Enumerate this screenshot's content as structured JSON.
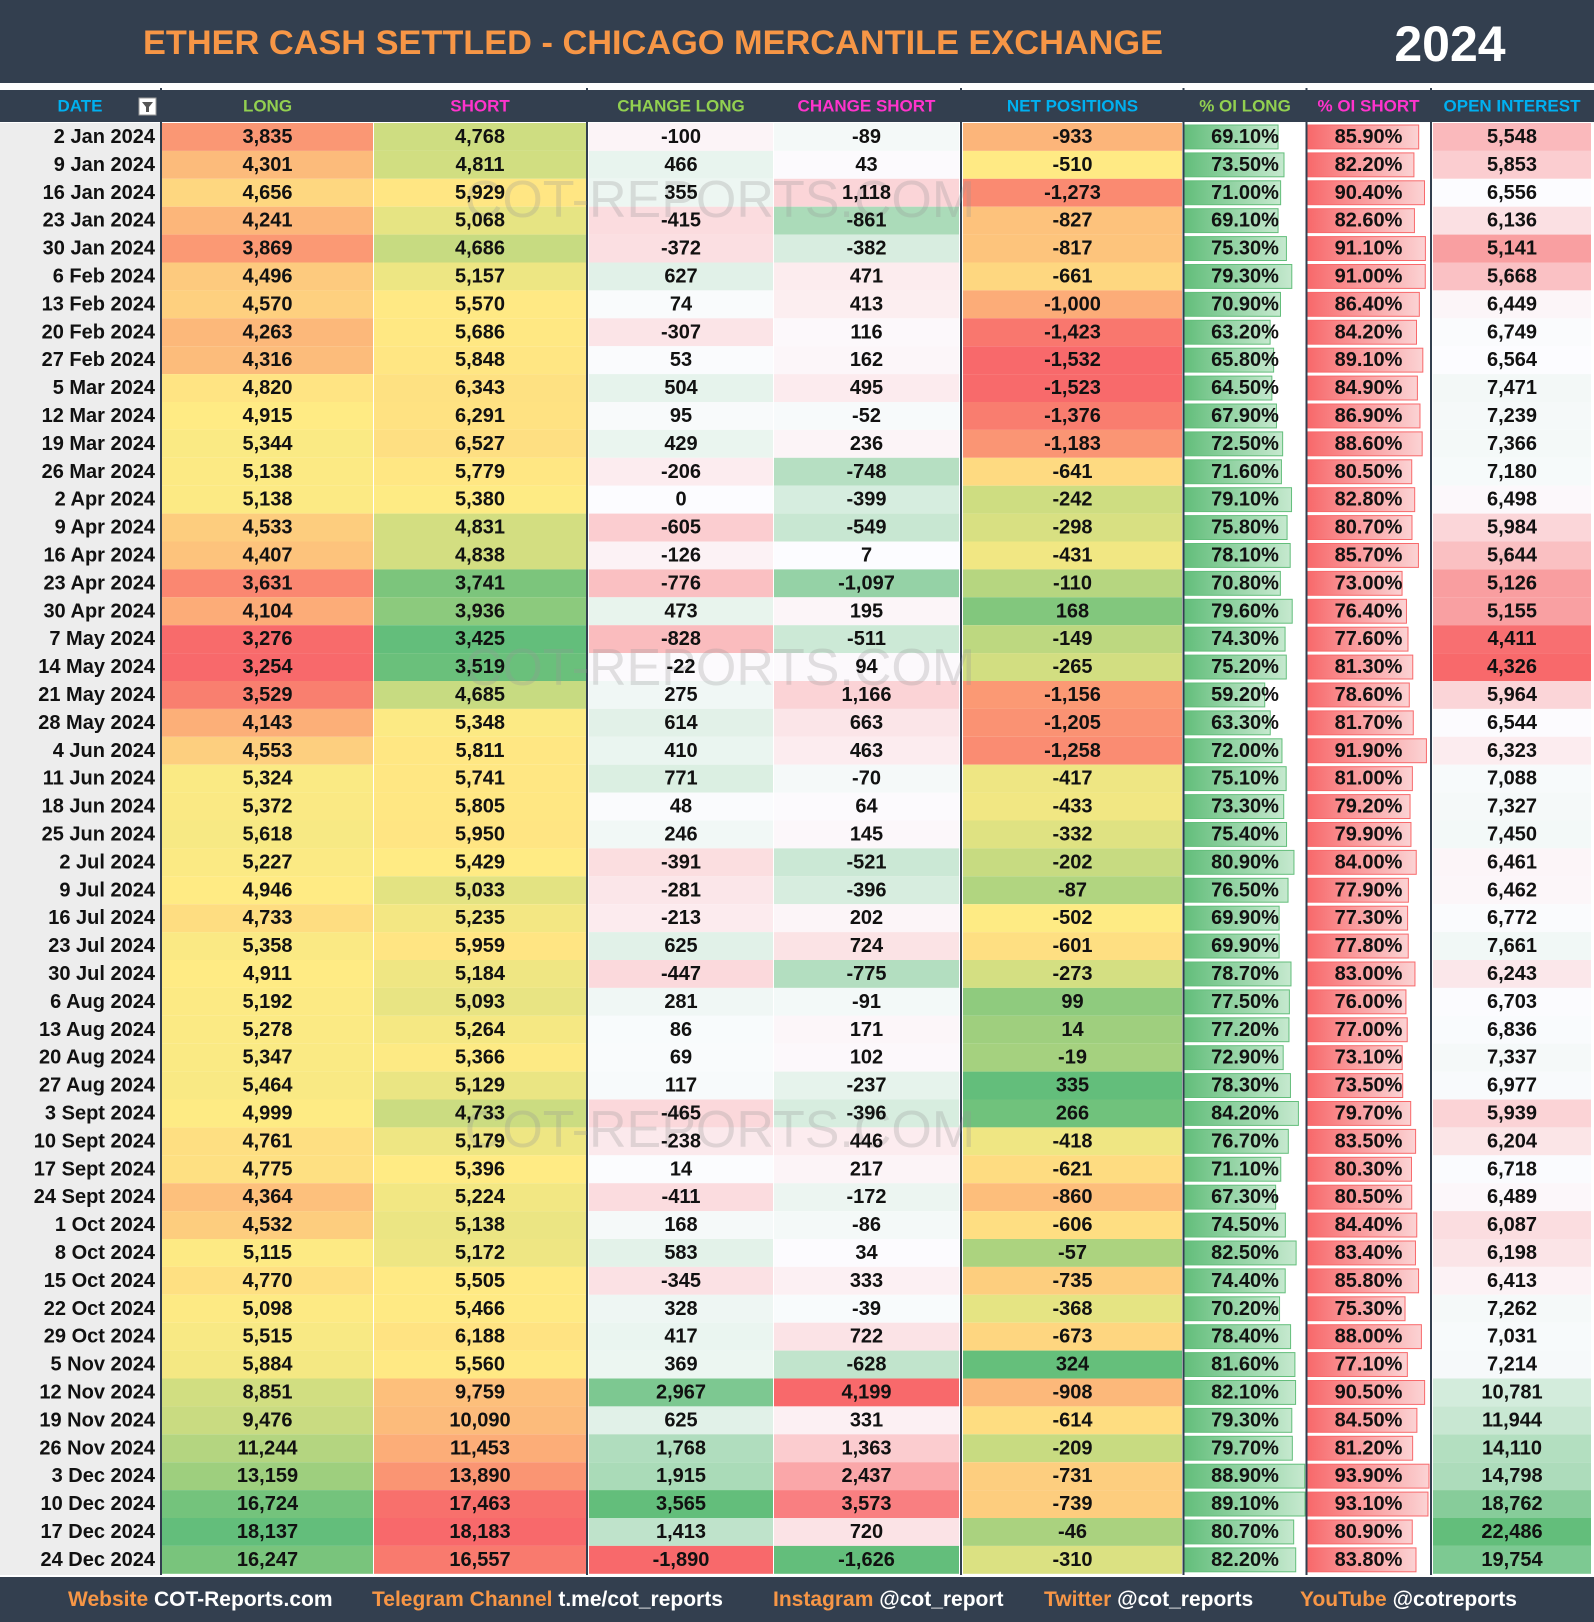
{
  "header": {
    "title": "ETHER CASH SETTLED - CHICAGO MERCANTILE EXCHANGE",
    "year": "2024"
  },
  "table": {
    "columns": [
      "DATE",
      "LONG",
      "SHORT",
      "CHANGE LONG",
      "CHANGE SHORT",
      "NET POSITIONS",
      "% OI LONG",
      "% OI SHORT",
      "OPEN INTEREST"
    ],
    "rows": [
      [
        "2 Jan 2024",
        "3,835",
        "4,768",
        "-100",
        "-89",
        "-933",
        "69.10%",
        "85.90%",
        "5,548"
      ],
      [
        "9 Jan 2024",
        "4,301",
        "4,811",
        "466",
        "43",
        "-510",
        "73.50%",
        "82.20%",
        "5,853"
      ],
      [
        "16 Jan 2024",
        "4,656",
        "5,929",
        "355",
        "1,118",
        "-1,273",
        "71.00%",
        "90.40%",
        "6,556"
      ],
      [
        "23 Jan 2024",
        "4,241",
        "5,068",
        "-415",
        "-861",
        "-827",
        "69.10%",
        "82.60%",
        "6,136"
      ],
      [
        "30 Jan 2024",
        "3,869",
        "4,686",
        "-372",
        "-382",
        "-817",
        "75.30%",
        "91.10%",
        "5,141"
      ],
      [
        "6 Feb 2024",
        "4,496",
        "5,157",
        "627",
        "471",
        "-661",
        "79.30%",
        "91.00%",
        "5,668"
      ],
      [
        "13 Feb 2024",
        "4,570",
        "5,570",
        "74",
        "413",
        "-1,000",
        "70.90%",
        "86.40%",
        "6,449"
      ],
      [
        "20 Feb 2024",
        "4,263",
        "5,686",
        "-307",
        "116",
        "-1,423",
        "63.20%",
        "84.20%",
        "6,749"
      ],
      [
        "27 Feb 2024",
        "4,316",
        "5,848",
        "53",
        "162",
        "-1,532",
        "65.80%",
        "89.10%",
        "6,564"
      ],
      [
        "5 Mar 2024",
        "4,820",
        "6,343",
        "504",
        "495",
        "-1,523",
        "64.50%",
        "84.90%",
        "7,471"
      ],
      [
        "12 Mar 2024",
        "4,915",
        "6,291",
        "95",
        "-52",
        "-1,376",
        "67.90%",
        "86.90%",
        "7,239"
      ],
      [
        "19 Mar 2024",
        "5,344",
        "6,527",
        "429",
        "236",
        "-1,183",
        "72.50%",
        "88.60%",
        "7,366"
      ],
      [
        "26 Mar 2024",
        "5,138",
        "5,779",
        "-206",
        "-748",
        "-641",
        "71.60%",
        "80.50%",
        "7,180"
      ],
      [
        "2 Apr 2024",
        "5,138",
        "5,380",
        "0",
        "-399",
        "-242",
        "79.10%",
        "82.80%",
        "6,498"
      ],
      [
        "9 Apr 2024",
        "4,533",
        "4,831",
        "-605",
        "-549",
        "-298",
        "75.80%",
        "80.70%",
        "5,984"
      ],
      [
        "16 Apr 2024",
        "4,407",
        "4,838",
        "-126",
        "7",
        "-431",
        "78.10%",
        "85.70%",
        "5,644"
      ],
      [
        "23 Apr 2024",
        "3,631",
        "3,741",
        "-776",
        "-1,097",
        "-110",
        "70.80%",
        "73.00%",
        "5,126"
      ],
      [
        "30 Apr 2024",
        "4,104",
        "3,936",
        "473",
        "195",
        "168",
        "79.60%",
        "76.40%",
        "5,155"
      ],
      [
        "7 May 2024",
        "3,276",
        "3,425",
        "-828",
        "-511",
        "-149",
        "74.30%",
        "77.60%",
        "4,411"
      ],
      [
        "14 May 2024",
        "3,254",
        "3,519",
        "-22",
        "94",
        "-265",
        "75.20%",
        "81.30%",
        "4,326"
      ],
      [
        "21 May 2024",
        "3,529",
        "4,685",
        "275",
        "1,166",
        "-1,156",
        "59.20%",
        "78.60%",
        "5,964"
      ],
      [
        "28 May 2024",
        "4,143",
        "5,348",
        "614",
        "663",
        "-1,205",
        "63.30%",
        "81.70%",
        "6,544"
      ],
      [
        "4 Jun 2024",
        "4,553",
        "5,811",
        "410",
        "463",
        "-1,258",
        "72.00%",
        "91.90%",
        "6,323"
      ],
      [
        "11 Jun 2024",
        "5,324",
        "5,741",
        "771",
        "-70",
        "-417",
        "75.10%",
        "81.00%",
        "7,088"
      ],
      [
        "18 Jun 2024",
        "5,372",
        "5,805",
        "48",
        "64",
        "-433",
        "73.30%",
        "79.20%",
        "7,327"
      ],
      [
        "25 Jun 2024",
        "5,618",
        "5,950",
        "246",
        "145",
        "-332",
        "75.40%",
        "79.90%",
        "7,450"
      ],
      [
        "2 Jul 2024",
        "5,227",
        "5,429",
        "-391",
        "-521",
        "-202",
        "80.90%",
        "84.00%",
        "6,461"
      ],
      [
        "9 Jul 2024",
        "4,946",
        "5,033",
        "-281",
        "-396",
        "-87",
        "76.50%",
        "77.90%",
        "6,462"
      ],
      [
        "16 Jul 2024",
        "4,733",
        "5,235",
        "-213",
        "202",
        "-502",
        "69.90%",
        "77.30%",
        "6,772"
      ],
      [
        "23 Jul 2024",
        "5,358",
        "5,959",
        "625",
        "724",
        "-601",
        "69.90%",
        "77.80%",
        "7,661"
      ],
      [
        "30 Jul 2024",
        "4,911",
        "5,184",
        "-447",
        "-775",
        "-273",
        "78.70%",
        "83.00%",
        "6,243"
      ],
      [
        "6 Aug 2024",
        "5,192",
        "5,093",
        "281",
        "-91",
        "99",
        "77.50%",
        "76.00%",
        "6,703"
      ],
      [
        "13 Aug 2024",
        "5,278",
        "5,264",
        "86",
        "171",
        "14",
        "77.20%",
        "77.00%",
        "6,836"
      ],
      [
        "20 Aug 2024",
        "5,347",
        "5,366",
        "69",
        "102",
        "-19",
        "72.90%",
        "73.10%",
        "7,337"
      ],
      [
        "27 Aug 2024",
        "5,464",
        "5,129",
        "117",
        "-237",
        "335",
        "78.30%",
        "73.50%",
        "6,977"
      ],
      [
        "3 Sept 2024",
        "4,999",
        "4,733",
        "-465",
        "-396",
        "266",
        "84.20%",
        "79.70%",
        "5,939"
      ],
      [
        "10 Sept 2024",
        "4,761",
        "5,179",
        "-238",
        "446",
        "-418",
        "76.70%",
        "83.50%",
        "6,204"
      ],
      [
        "17 Sept 2024",
        "4,775",
        "5,396",
        "14",
        "217",
        "-621",
        "71.10%",
        "80.30%",
        "6,718"
      ],
      [
        "24 Sept 2024",
        "4,364",
        "5,224",
        "-411",
        "-172",
        "-860",
        "67.30%",
        "80.50%",
        "6,489"
      ],
      [
        "1 Oct 2024",
        "4,532",
        "5,138",
        "168",
        "-86",
        "-606",
        "74.50%",
        "84.40%",
        "6,087"
      ],
      [
        "8 Oct 2024",
        "5,115",
        "5,172",
        "583",
        "34",
        "-57",
        "82.50%",
        "83.40%",
        "6,198"
      ],
      [
        "15 Oct 2024",
        "4,770",
        "5,505",
        "-345",
        "333",
        "-735",
        "74.40%",
        "85.80%",
        "6,413"
      ],
      [
        "22 Oct 2024",
        "5,098",
        "5,466",
        "328",
        "-39",
        "-368",
        "70.20%",
        "75.30%",
        "7,262"
      ],
      [
        "29 Oct 2024",
        "5,515",
        "6,188",
        "417",
        "722",
        "-673",
        "78.40%",
        "88.00%",
        "7,031"
      ],
      [
        "5 Nov 2024",
        "5,884",
        "5,560",
        "369",
        "-628",
        "324",
        "81.60%",
        "77.10%",
        "7,214"
      ],
      [
        "12 Nov 2024",
        "8,851",
        "9,759",
        "2,967",
        "4,199",
        "-908",
        "82.10%",
        "90.50%",
        "10,781"
      ],
      [
        "19 Nov 2024",
        "9,476",
        "10,090",
        "625",
        "331",
        "-614",
        "79.30%",
        "84.50%",
        "11,944"
      ],
      [
        "26 Nov 2024",
        "11,244",
        "11,453",
        "1,768",
        "1,363",
        "-209",
        "79.70%",
        "81.20%",
        "14,110"
      ],
      [
        "3 Dec 2024",
        "13,159",
        "13,890",
        "1,915",
        "2,437",
        "-731",
        "88.90%",
        "93.90%",
        "14,798"
      ],
      [
        "10 Dec 2024",
        "16,724",
        "17,463",
        "3,565",
        "3,573",
        "-739",
        "89.10%",
        "93.10%",
        "18,762"
      ],
      [
        "17 Dec 2024",
        "18,137",
        "18,183",
        "1,413",
        "720",
        "-46",
        "80.70%",
        "80.90%",
        "22,486"
      ],
      [
        "24 Dec 2024",
        "16,247",
        "16,557",
        "-1,890",
        "-1,626",
        "-310",
        "82.20%",
        "83.80%",
        "19,754"
      ]
    ]
  },
  "watermark": "COT-REPORTS.COM",
  "footer": [
    {
      "label": "Website",
      "value": "COT-Reports.com"
    },
    {
      "label": "Telegram Channel",
      "value": "t.me/cot_reports"
    },
    {
      "label": "Instagram",
      "value": "@cot_report"
    },
    {
      "label": "Twitter",
      "value": "@cot_reports"
    },
    {
      "label": "YouTube",
      "value": "@cotreports"
    }
  ]
}
